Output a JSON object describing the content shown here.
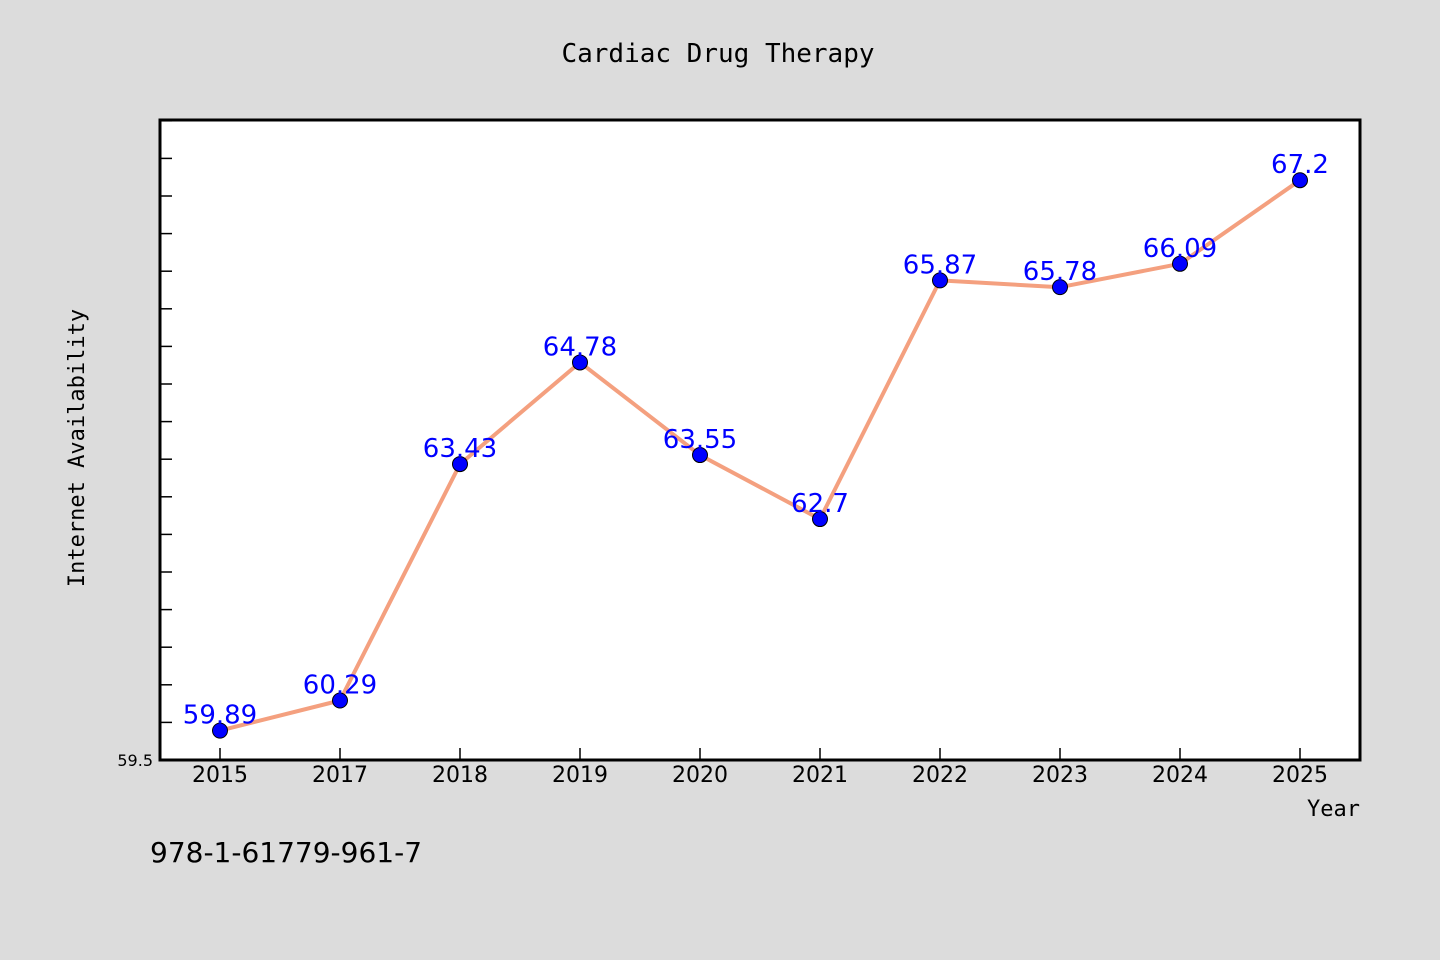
{
  "colors": {
    "background": "#dcdcdc",
    "plot_background": "#ffffff",
    "line": "#f4a07f",
    "marker": "#0000ff",
    "data_label": "#0000ff"
  },
  "footer": {
    "text": "978-1-61779-961-7"
  },
  "chart_data": {
    "type": "line",
    "title": "Cardiac Drug Therapy",
    "xlabel": "Year",
    "ylabel": "Internet Availability",
    "categories": [
      "2015",
      "2017",
      "2018",
      "2019",
      "2020",
      "2021",
      "2022",
      "2023",
      "2024",
      "2025"
    ],
    "series": [
      {
        "values": [
          59.89,
          60.29,
          63.43,
          64.78,
          63.55,
          62.7,
          65.87,
          65.78,
          66.09,
          67.2
        ]
      }
    ],
    "data_labels": [
      "59.89",
      "60.29",
      "63.43",
      "64.78",
      "63.55",
      "62.7",
      "65.87",
      "65.78",
      "66.09",
      "67.2"
    ],
    "ylim": [
      59.5,
      68.0
    ],
    "ytick_labels": [
      "59.5"
    ],
    "grid": false,
    "legend": "none"
  }
}
